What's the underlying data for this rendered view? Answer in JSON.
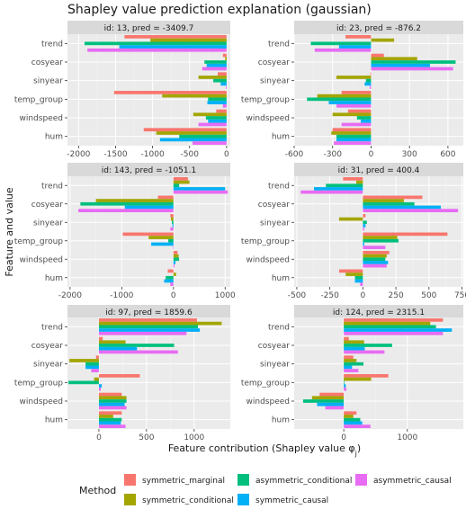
{
  "chart_data": {
    "type": "bar",
    "title": "Shapley value prediction explanation (gaussian)",
    "xlabel": "Feature contribution (Shapley value φ₀)",
    "xlabel_main": "Feature contribution (Shapley value φ",
    "xlabel_sub": "j",
    "xlabel_close": ")",
    "ylabel": "Feature and value",
    "features": [
      "trend",
      "cosyear",
      "sinyear",
      "temp_group",
      "windspeed",
      "hum"
    ],
    "methods": [
      "symmetric_marginal",
      "symmetric_conditional",
      "asymmetric_conditional",
      "symmetric_causal",
      "asymmetric_causal"
    ],
    "colors": {
      "symmetric_marginal": "#F8766D",
      "symmetric_conditional": "#A3A500",
      "asymmetric_conditional": "#00BF7D",
      "symmetric_causal": "#00B0F6",
      "asymmetric_causal": "#E76BF3"
    },
    "legend": {
      "title": "Method",
      "position": "bottom",
      "items": [
        "symmetric_marginal",
        "asymmetric_conditional",
        "asymmetric_causal",
        "symmetric_conditional",
        "symmetric_causal"
      ]
    },
    "grid": true,
    "panels": [
      {
        "label": "id: 13, pred = -3409.7",
        "xlim": [
          -2150,
          50
        ],
        "xticks": [
          -2000,
          -1500,
          -1000,
          -500,
          0
        ],
        "series": [
          {
            "name": "symmetric_marginal",
            "values": [
              -1380,
              -50,
              -120,
              -1520,
              -140,
              -1120
            ]
          },
          {
            "name": "symmetric_conditional",
            "values": [
              -1030,
              -20,
              -380,
              -870,
              -450,
              -950
            ]
          },
          {
            "name": "asymmetric_conditional",
            "values": [
              -1920,
              -300,
              -180,
              -250,
              -280,
              -640
            ]
          },
          {
            "name": "symmetric_causal",
            "values": [
              -1450,
              -270,
              -80,
              -260,
              -250,
              -900
            ]
          },
          {
            "name": "asymmetric_causal",
            "values": [
              -1880,
              -330,
              -10,
              -50,
              -380,
              -460
            ]
          }
        ]
      },
      {
        "label": "id: 23, pred =  -876.2",
        "xlim": [
          -600,
          720
        ],
        "xticks": [
          -600,
          -300,
          0,
          300,
          600
        ],
        "series": [
          {
            "name": "symmetric_marginal",
            "values": [
              -200,
              100,
              -5,
              -230,
              -180,
              -300
            ]
          },
          {
            "name": "symmetric_conditional",
            "values": [
              180,
              360,
              -270,
              -420,
              -300,
              -310
            ]
          },
          {
            "name": "asymmetric_conditional",
            "values": [
              -470,
              660,
              -40,
              -500,
              -110,
              -270
            ]
          },
          {
            "name": "symmetric_causal",
            "values": [
              -250,
              460,
              -50,
              -330,
              -80,
              -270
            ]
          },
          {
            "name": "asymmetric_causal",
            "values": [
              -440,
              640,
              -10,
              -270,
              -230,
              -290
            ]
          }
        ]
      },
      {
        "label": "id: 143, pred = -1051.1",
        "xlim": [
          -2050,
          1100
        ],
        "xticks": [
          -2000,
          -1000,
          0,
          1000
        ],
        "series": [
          {
            "name": "symmetric_marginal",
            "values": [
              280,
              -300,
              -60,
              -980,
              80,
              -110
            ]
          },
          {
            "name": "symmetric_conditional",
            "values": [
              310,
              -1500,
              -50,
              -480,
              100,
              50
            ]
          },
          {
            "name": "asymmetric_conditional",
            "values": [
              110,
              -1800,
              -30,
              -100,
              110,
              -150
            ]
          },
          {
            "name": "symmetric_causal",
            "values": [
              1000,
              -940,
              -20,
              -430,
              40,
              -180
            ]
          },
          {
            "name": "asymmetric_causal",
            "values": [
              1050,
              -1840,
              -60,
              -10,
              20,
              -60
            ]
          }
        ]
      },
      {
        "label": "id: 31, pred =  400.4",
        "xlim": [
          -520,
          760
        ],
        "xticks": [
          -500,
          -250,
          0,
          250,
          500,
          750
        ],
        "series": [
          {
            "name": "symmetric_marginal",
            "values": [
              -150,
              450,
              20,
              640,
              200,
              -180
            ]
          },
          {
            "name": "symmetric_conditional",
            "values": [
              -50,
              310,
              -180,
              260,
              180,
              -130
            ]
          },
          {
            "name": "asymmetric_conditional",
            "values": [
              -280,
              390,
              30,
              270,
              170,
              -60
            ]
          },
          {
            "name": "symmetric_causal",
            "values": [
              -370,
              590,
              20,
              10,
              190,
              -60
            ]
          },
          {
            "name": "asymmetric_causal",
            "values": [
              -470,
              720,
              10,
              170,
              180,
              -20
            ]
          }
        ]
      },
      {
        "label": "id: 97, pred = 1859.6",
        "xlim": [
          -330,
          1380
        ],
        "xticks": [
          0,
          500,
          1000
        ],
        "series": [
          {
            "name": "symmetric_marginal",
            "values": [
              1030,
              40,
              -30,
              430,
              240,
              240
            ]
          },
          {
            "name": "symmetric_conditional",
            "values": [
              1290,
              280,
              -310,
              -50,
              290,
              150
            ]
          },
          {
            "name": "asymmetric_conditional",
            "values": [
              1040,
              790,
              -140,
              -320,
              290,
              240
            ]
          },
          {
            "name": "symmetric_causal",
            "values": [
              1060,
              400,
              -140,
              30,
              270,
              230
            ]
          },
          {
            "name": "asymmetric_causal",
            "values": [
              920,
              830,
              -80,
              20,
              290,
              280
            ]
          }
        ]
      },
      {
        "label": "id: 124, pred = 2315.1",
        "xlim": [
          -780,
          1880
        ],
        "xticks": [
          0,
          1000
        ],
        "series": [
          {
            "name": "symmetric_marginal",
            "values": [
              1560,
              80,
              150,
              700,
              -380,
              200
            ]
          },
          {
            "name": "symmetric_conditional",
            "values": [
              1360,
              320,
              200,
              430,
              -500,
              150
            ]
          },
          {
            "name": "asymmetric_conditional",
            "values": [
              1450,
              760,
              310,
              10,
              -640,
              260
            ]
          },
          {
            "name": "symmetric_causal",
            "values": [
              1700,
              330,
              130,
              30,
              -420,
              290
            ]
          },
          {
            "name": "asymmetric_causal",
            "values": [
              1560,
              640,
              230,
              40,
              -290,
              420
            ]
          }
        ]
      }
    ]
  }
}
